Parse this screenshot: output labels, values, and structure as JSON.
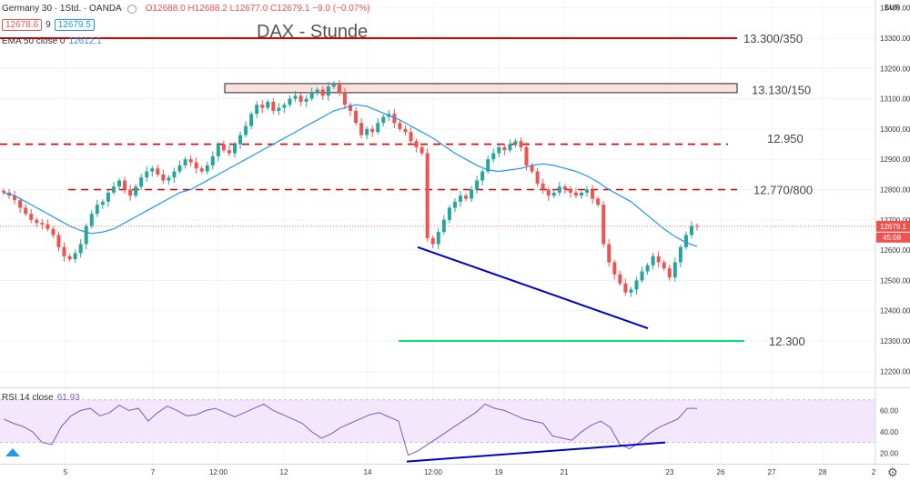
{
  "header": {
    "symbol": "Germany 30 · 1Std. · OANDA",
    "ohlc": "O12688.0  H12688.2  L12677.0  C12679.1  −9.0 (−0.07%)",
    "bid": "12678.6",
    "spread": "9",
    "ask": "12679.5",
    "ema_label": "EMA 50 close 0",
    "ema_value": "12612.1",
    "chart_title": "DAX - Stunde"
  },
  "rsi": {
    "label": "RSI 14 close",
    "value": "61.93"
  },
  "price_axis": {
    "currency": "EUR",
    "ticks": [
      "13400.00",
      "13300.00",
      "13200.00",
      "13100.00",
      "13000.00",
      "12900.00",
      "12800.00",
      "12700.00",
      "12600.00",
      "12500.00",
      "12400.00",
      "12300.00",
      "12200.00"
    ],
    "current_price": "12679.1",
    "countdown": "45:08"
  },
  "rsi_axis": {
    "ticks": [
      "60.00",
      "40.00",
      "20.00"
    ]
  },
  "time_axis": {
    "ticks": [
      "5",
      "7",
      "12:00",
      "12",
      "14",
      "12:00",
      "19",
      "21",
      "23",
      "26",
      "27",
      "28",
      "2"
    ]
  },
  "annotations": {
    "l1": "13.300/350",
    "l2": "13.130/150",
    "l3": "12.950",
    "l4": "12.770/800",
    "l5": "12.300"
  },
  "colors": {
    "up": "#26a69a",
    "down": "#ef5350",
    "ema": "#2196f3",
    "rsi": "#7e57c2",
    "resistance": "#d50000",
    "support": "#00e676",
    "trendline": "#0000cc"
  },
  "chart_data": {
    "type": "candlestick",
    "title": "DAX - Stunde",
    "series": [
      {
        "name": "Germany 30",
        "values": [
          12790,
          12780,
          12765,
          12740,
          12720,
          12700,
          12690,
          12685,
          12670,
          12650,
          12610,
          12580,
          12570,
          12590,
          12620,
          12680,
          12720,
          12750,
          12760,
          12790,
          12810,
          12830,
          12800,
          12780,
          12810,
          12840,
          12860,
          12870,
          12850,
          12830,
          12840,
          12860,
          12880,
          12900,
          12890,
          12870,
          12860,
          12880,
          12910,
          12950,
          12930,
          12920,
          12950,
          12980,
          13010,
          13050,
          13080,
          13070,
          13090,
          13060,
          13070,
          13080,
          13100,
          13110,
          13090,
          13100,
          13120,
          13130,
          13110,
          13140,
          13150,
          13120,
          13080,
          13060,
          13020,
          12980,
          13000,
          12990,
          13020,
          13040,
          13050,
          13020,
          13000,
          12990,
          12960,
          12940,
          12920,
          12640,
          12620,
          12660,
          12700,
          12740,
          12760,
          12780,
          12770,
          12800,
          12830,
          12860,
          12900,
          12920,
          12940,
          12930,
          12950,
          12960,
          12940,
          12880,
          12860,
          12820,
          12800,
          12780,
          12790,
          12810,
          12800,
          12790,
          12780,
          12790,
          12800,
          12770,
          12750,
          12620,
          12560,
          12520,
          12490,
          12460,
          12470,
          12500,
          12530,
          12550,
          12580,
          12560,
          12540,
          12510,
          12560,
          12610,
          12650,
          12680,
          12679
        ]
      },
      {
        "name": "EMA 50 close",
        "values": [
          12790,
          12780,
          12760,
          12740,
          12720,
          12700,
          12680,
          12665,
          12655,
          12660,
          12670,
          12690,
          12710,
          12730,
          12750,
          12770,
          12790,
          12800,
          12820,
          12840,
          12860,
          12880,
          12900,
          12920,
          12940,
          12960,
          12980,
          13000,
          13020,
          13040,
          13060,
          13070,
          13080,
          13075,
          13060,
          13045,
          13030,
          13010,
          12990,
          12970,
          12945,
          12920,
          12900,
          12880,
          12865,
          12860,
          12865,
          12870,
          12880,
          12885,
          12880,
          12870,
          12860,
          12845,
          12825,
          12800,
          12780,
          12760,
          12730,
          12700,
          12670,
          12645,
          12625,
          12612
        ]
      },
      {
        "name": "RSI 14 close",
        "values": [
          52,
          48,
          45,
          40,
          30,
          28,
          45,
          55,
          60,
          62,
          55,
          58,
          65,
          60,
          62,
          50,
          58,
          64,
          60,
          55,
          56,
          60,
          62,
          58,
          54,
          58,
          62,
          66,
          60,
          56,
          52,
          48,
          40,
          34,
          38,
          44,
          48,
          52,
          56,
          58,
          54,
          50,
          18,
          22,
          28,
          34,
          40,
          46,
          52,
          58,
          66,
          62,
          60,
          56,
          52,
          50,
          48,
          36,
          34,
          32,
          40,
          46,
          50,
          44,
          28,
          24,
          30,
          38,
          44,
          48,
          52,
          62,
          61.93
        ]
      }
    ],
    "ylim": [
      12150,
      13420
    ],
    "rsi_ylim": [
      10,
      80
    ],
    "levels": [
      {
        "label": "13.300/350",
        "value": 13300
      },
      {
        "label": "13.130/150",
        "value": 13130
      },
      {
        "label": "12.950",
        "value": 12950
      },
      {
        "label": "12.770/800",
        "value": 12800
      },
      {
        "label": "12.300",
        "value": 12300
      }
    ]
  }
}
